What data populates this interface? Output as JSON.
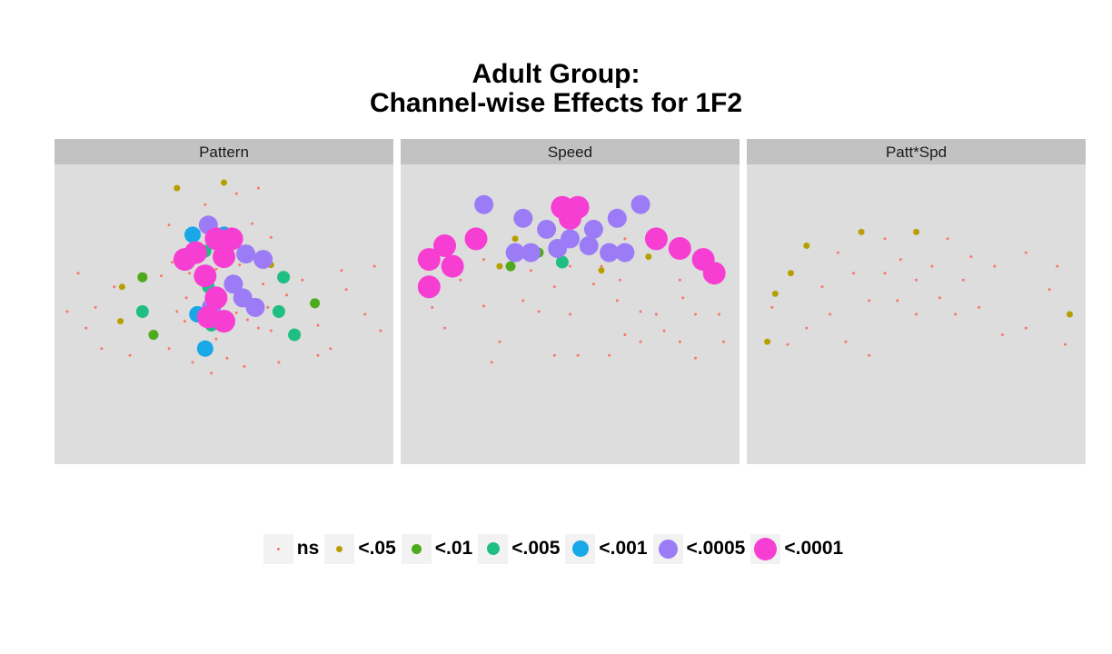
{
  "title": {
    "line1": "Adult Group:",
    "line2": "Channel-wise Effects for 1F2"
  },
  "legend": {
    "items": [
      {
        "label": "ns",
        "color": "#F8766D",
        "size": 3
      },
      {
        "label": "<.05",
        "color": "#B79F00",
        "size": 7
      },
      {
        "label": "<.01",
        "color": "#4DAA1A",
        "size": 11
      },
      {
        "label": "<.005",
        "color": "#1FBF84",
        "size": 14
      },
      {
        "label": "<.001",
        "color": "#18A8E8",
        "size": 18
      },
      {
        "label": "<.0005",
        "color": "#9C7CF6",
        "size": 21
      },
      {
        "label": "<.0001",
        "color": "#F63FD2",
        "size": 25
      }
    ]
  },
  "chart_data": {
    "type": "scatter",
    "panel_background": "#DDDDDD",
    "strip_background": "#C2C2C2",
    "grid": false,
    "legend_position": "bottom",
    "facets": [
      {
        "name": "Pattern",
        "points": [
          [
            -1.0,
            0.02,
            0
          ],
          [
            -0.93,
            0.3,
            0
          ],
          [
            -0.88,
            -0.1,
            0
          ],
          [
            -0.65,
            0.2,
            1
          ],
          [
            -0.66,
            -0.05,
            1
          ],
          [
            -0.52,
            0.27,
            2
          ],
          [
            -0.52,
            0.02,
            3
          ],
          [
            -0.45,
            -0.15,
            2
          ],
          [
            -0.35,
            0.65,
            0
          ],
          [
            -0.4,
            0.28,
            0
          ],
          [
            -0.33,
            0.38,
            0
          ],
          [
            -0.3,
            0.02,
            0
          ],
          [
            -0.24,
            0.12,
            0
          ],
          [
            -0.16,
            0.34,
            0
          ],
          [
            -0.1,
            0.2,
            3
          ],
          [
            -0.12,
            0.46,
            3
          ],
          [
            -0.17,
            0.0,
            4
          ],
          [
            -0.1,
            0.32,
            0
          ],
          [
            -0.08,
            -0.08,
            3
          ],
          [
            -0.05,
            0.03,
            0
          ],
          [
            -0.06,
            0.16,
            0
          ],
          [
            -0.05,
            -0.18,
            0
          ],
          [
            0.0,
            0.6,
            1
          ],
          [
            0.0,
            0.45,
            1
          ],
          [
            -0.12,
            -0.25,
            4
          ],
          [
            0.02,
            -0.32,
            0
          ],
          [
            -0.05,
            0.33,
            0
          ],
          [
            0.1,
            0.36,
            0
          ],
          [
            0.2,
            0.43,
            0
          ],
          [
            0.15,
            -0.04,
            0
          ],
          [
            0.08,
            0.01,
            0
          ],
          [
            0.22,
            -0.1,
            0
          ],
          [
            0.3,
            0.36,
            1
          ],
          [
            0.3,
            -0.12,
            0
          ],
          [
            0.38,
            0.27,
            3
          ],
          [
            0.35,
            0.02,
            3
          ],
          [
            0.45,
            -0.15,
            3
          ],
          [
            0.5,
            0.25,
            0
          ],
          [
            0.58,
            0.08,
            2
          ],
          [
            0.6,
            -0.08,
            0
          ],
          [
            0.75,
            0.32,
            0
          ],
          [
            0.78,
            0.18,
            0
          ],
          [
            0.9,
            0.0,
            0
          ],
          [
            0.96,
            0.35,
            0
          ],
          [
            1.0,
            -0.12,
            0
          ],
          [
            -0.82,
            0.05,
            0
          ],
          [
            -0.78,
            -0.25,
            0
          ],
          [
            -0.7,
            0.2,
            0
          ],
          [
            0.68,
            -0.25,
            0
          ],
          [
            -0.35,
            -0.25,
            0
          ],
          [
            0.4,
            0.14,
            0
          ],
          [
            0.25,
            0.22,
            0
          ],
          [
            -0.12,
            0.8,
            0
          ],
          [
            0.0,
            0.96,
            1
          ],
          [
            0.08,
            0.88,
            0
          ],
          [
            -0.3,
            0.92,
            1
          ],
          [
            0.22,
            0.92,
            0
          ],
          [
            -0.08,
            -0.43,
            0
          ],
          [
            0.13,
            -0.38,
            0
          ],
          [
            -0.03,
            0.48,
            1
          ],
          [
            -0.2,
            0.5,
            0
          ],
          [
            0.18,
            0.66,
            0
          ],
          [
            0.3,
            0.56,
            0
          ],
          [
            -0.22,
            0.3,
            0
          ],
          [
            -0.2,
            -0.35,
            0
          ],
          [
            0.35,
            -0.35,
            0
          ],
          [
            -0.6,
            -0.3,
            0
          ],
          [
            0.6,
            -0.3,
            0
          ],
          [
            -0.25,
            -0.05,
            0
          ],
          [
            0.28,
            0.05,
            0
          ]
        ],
        "large_points": [
          [
            0.0,
            0.58,
            4
          ],
          [
            0.14,
            0.44,
            5
          ],
          [
            -0.1,
            0.65,
            5
          ],
          [
            -0.2,
            0.58,
            4
          ],
          [
            -0.25,
            0.4,
            6
          ],
          [
            0.0,
            0.42,
            6
          ],
          [
            -0.12,
            0.28,
            6
          ],
          [
            0.06,
            0.22,
            5
          ],
          [
            0.12,
            0.12,
            5
          ],
          [
            -0.05,
            0.12,
            6
          ],
          [
            -0.1,
            -0.02,
            6
          ],
          [
            0.0,
            -0.05,
            6
          ],
          [
            -0.08,
            0.05,
            5
          ],
          [
            0.2,
            0.05,
            5
          ],
          [
            0.25,
            0.4,
            5
          ],
          [
            -0.18,
            0.45,
            6
          ],
          [
            -0.05,
            0.55,
            6
          ],
          [
            0.05,
            0.55,
            6
          ]
        ]
      },
      {
        "name": "Speed",
        "points": [
          [
            -0.95,
            0.4,
            0
          ],
          [
            -0.88,
            0.05,
            0
          ],
          [
            -0.8,
            -0.1,
            0
          ],
          [
            -0.7,
            0.25,
            0
          ],
          [
            -0.6,
            0.55,
            0
          ],
          [
            -0.45,
            -0.2,
            0
          ],
          [
            -0.38,
            0.35,
            2
          ],
          [
            -0.3,
            0.1,
            0
          ],
          [
            -0.2,
            0.02,
            0
          ],
          [
            -0.1,
            0.2,
            0
          ],
          [
            0.0,
            0.35,
            0
          ],
          [
            0.15,
            0.22,
            0
          ],
          [
            0.3,
            0.1,
            0
          ],
          [
            0.45,
            -0.2,
            0
          ],
          [
            0.6,
            0.55,
            0
          ],
          [
            0.7,
            0.25,
            0
          ],
          [
            0.8,
            0.0,
            0
          ],
          [
            0.9,
            0.4,
            0
          ],
          [
            0.95,
            0.0,
            0
          ],
          [
            0.98,
            -0.2,
            0
          ],
          [
            -0.55,
            0.06,
            0
          ],
          [
            -0.35,
            0.55,
            1
          ],
          [
            -0.2,
            0.45,
            2
          ],
          [
            0.15,
            0.48,
            0
          ],
          [
            0.35,
            0.55,
            0
          ],
          [
            0.5,
            0.42,
            1
          ],
          [
            0.72,
            0.12,
            0
          ],
          [
            -0.45,
            0.35,
            1
          ],
          [
            -0.25,
            0.32,
            0
          ],
          [
            0.2,
            0.35,
            0
          ],
          [
            -0.05,
            0.38,
            3
          ],
          [
            0.2,
            0.32,
            1
          ],
          [
            0.32,
            0.25,
            0
          ],
          [
            0.45,
            0.02,
            0
          ],
          [
            0.55,
            0.0,
            0
          ],
          [
            0.6,
            -0.12,
            0
          ],
          [
            0.7,
            -0.2,
            0
          ],
          [
            0.8,
            -0.32,
            0
          ],
          [
            -0.5,
            -0.35,
            0
          ],
          [
            -0.55,
            0.4,
            0
          ],
          [
            0.0,
            0.0,
            0
          ],
          [
            0.05,
            -0.3,
            0
          ],
          [
            -0.1,
            -0.3,
            0
          ],
          [
            0.25,
            -0.3,
            0
          ],
          [
            0.35,
            -0.15,
            0
          ]
        ],
        "large_points": [
          [
            -0.55,
            0.8,
            5
          ],
          [
            0.45,
            0.8,
            5
          ],
          [
            -0.3,
            0.7,
            5
          ],
          [
            0.3,
            0.7,
            5
          ],
          [
            -0.15,
            0.62,
            5
          ],
          [
            0.0,
            0.55,
            5
          ],
          [
            0.15,
            0.62,
            5
          ],
          [
            -0.05,
            0.78,
            6
          ],
          [
            0.0,
            0.7,
            6
          ],
          [
            0.05,
            0.78,
            6
          ],
          [
            -0.35,
            0.45,
            5
          ],
          [
            0.35,
            0.45,
            5
          ],
          [
            -0.6,
            0.55,
            6
          ],
          [
            -0.8,
            0.5,
            6
          ],
          [
            -0.9,
            0.4,
            6
          ],
          [
            -0.75,
            0.35,
            6
          ],
          [
            -0.9,
            0.2,
            6
          ],
          [
            0.55,
            0.55,
            6
          ],
          [
            0.7,
            0.48,
            6
          ],
          [
            0.85,
            0.4,
            6
          ],
          [
            0.92,
            0.3,
            6
          ],
          [
            -0.25,
            0.45,
            5
          ],
          [
            0.25,
            0.45,
            5
          ],
          [
            -0.08,
            0.48,
            5
          ],
          [
            0.12,
            0.5,
            5
          ]
        ]
      },
      {
        "name": "Patt*Spd",
        "points": [
          [
            -0.95,
            -0.2,
            1
          ],
          [
            -0.9,
            0.15,
            1
          ],
          [
            -0.8,
            0.3,
            1
          ],
          [
            -0.7,
            0.5,
            1
          ],
          [
            -0.5,
            0.45,
            0
          ],
          [
            -0.4,
            0.3,
            0
          ],
          [
            -0.35,
            0.6,
            1
          ],
          [
            -0.2,
            0.55,
            0
          ],
          [
            0.0,
            0.6,
            1
          ],
          [
            0.2,
            0.55,
            0
          ],
          [
            0.35,
            0.42,
            0
          ],
          [
            0.5,
            0.35,
            0
          ],
          [
            0.7,
            0.45,
            0
          ],
          [
            0.9,
            0.35,
            0
          ],
          [
            0.98,
            0.0,
            1
          ],
          [
            -0.92,
            0.05,
            0
          ],
          [
            -0.82,
            -0.22,
            0
          ],
          [
            -0.7,
            -0.1,
            0
          ],
          [
            -0.6,
            0.2,
            0
          ],
          [
            -0.55,
            0.0,
            0
          ],
          [
            -0.45,
            -0.2,
            0
          ],
          [
            -0.3,
            -0.3,
            0
          ],
          [
            -0.2,
            0.3,
            0
          ],
          [
            -0.1,
            0.4,
            0
          ],
          [
            -0.12,
            0.1,
            0
          ],
          [
            0.0,
            0.25,
            0
          ],
          [
            0.1,
            0.35,
            0
          ],
          [
            0.15,
            0.12,
            0
          ],
          [
            0.3,
            0.25,
            0
          ],
          [
            0.4,
            0.05,
            0
          ],
          [
            0.55,
            -0.15,
            0
          ],
          [
            0.7,
            -0.1,
            0
          ],
          [
            0.85,
            0.18,
            0
          ],
          [
            0.95,
            -0.22,
            0
          ],
          [
            -0.3,
            0.1,
            0
          ],
          [
            0.25,
            0.0,
            0
          ],
          [
            0.0,
            0.0,
            0
          ]
        ],
        "large_points": []
      }
    ]
  }
}
